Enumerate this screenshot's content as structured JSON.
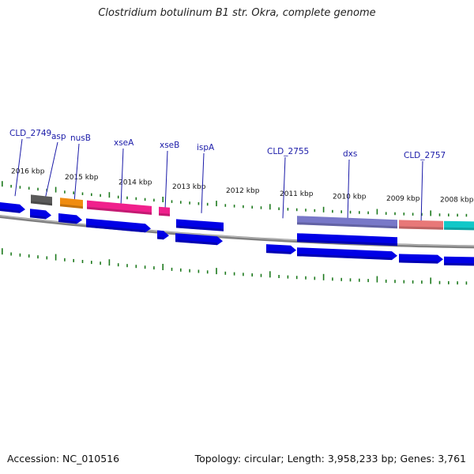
{
  "title": "Clostridium botulinum B1 str. Okra, complete genome",
  "footer": {
    "accession": "Accession: NC_010516",
    "summary": "Topology: circular; Length: 3,958,233 bp; Genes: 3,761"
  },
  "colors": {
    "gene_label": "#1a1aa8",
    "cds": "#0000e6",
    "tick": "#1e7a1e",
    "backbone": "#808080",
    "feature_grey": "#5a5a5a",
    "feature_orange": "#f08c10",
    "feature_pink": "#f0208c",
    "feature_salmon": "#e87878",
    "feature_cyan": "#10c8c8",
    "feature_blue_pale": "#7878c8"
  },
  "kbp_labels": [
    "2016 kbp",
    "2015 kbp",
    "2014 kbp",
    "2013 kbp",
    "2012 kbp",
    "2011 kbp",
    "2010 kbp",
    "2009 kbp",
    "2008 kbp"
  ],
  "gene_labels": [
    "CLD_2749",
    "asp",
    "nusB",
    "xseA",
    "xseB",
    "ispA",
    "CLD_2755",
    "dxs",
    "CLD_2757"
  ]
}
